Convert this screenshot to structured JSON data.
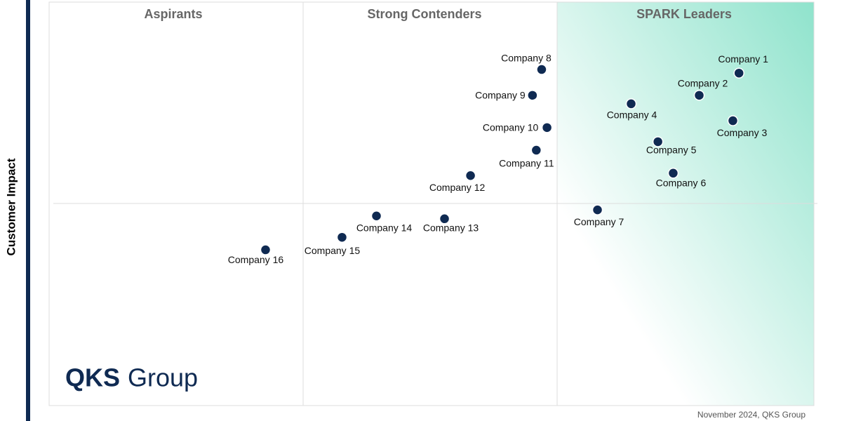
{
  "chart_data": {
    "type": "scatter",
    "quadrants": [
      "Aspirants",
      "Strong Contenders",
      "SPARK Leaders"
    ],
    "y_label": "Customer Impact",
    "footnote": "November 2024, QKS Group",
    "logo": [
      "QKS",
      "Group"
    ],
    "xlim": [
      0,
      100
    ],
    "ylim": [
      0,
      100
    ],
    "series": [
      {
        "name": null,
        "color": "#0f2a52",
        "labels": [
          "Company 1",
          "Company 2",
          "Company 3",
          "Company 4",
          "Company 5",
          "Company 6",
          "Company 7",
          "Company 8",
          "Company 9",
          "Company 10",
          "Company 11",
          "Company 12",
          "Company 13",
          "Company 14",
          "Company 15",
          "Company 16"
        ],
        "x": [
          90.2,
          85.0,
          89.4,
          76.1,
          79.6,
          81.6,
          71.7,
          64.4,
          63.2,
          65.1,
          63.7,
          55.1,
          51.7,
          42.8,
          38.3,
          28.3
        ],
        "values": [
          82.4,
          76.9,
          70.6,
          74.8,
          65.4,
          57.6,
          48.5,
          83.3,
          76.9,
          68.9,
          63.3,
          57.0,
          46.3,
          47.0,
          41.7,
          38.6
        ]
      }
    ]
  }
}
